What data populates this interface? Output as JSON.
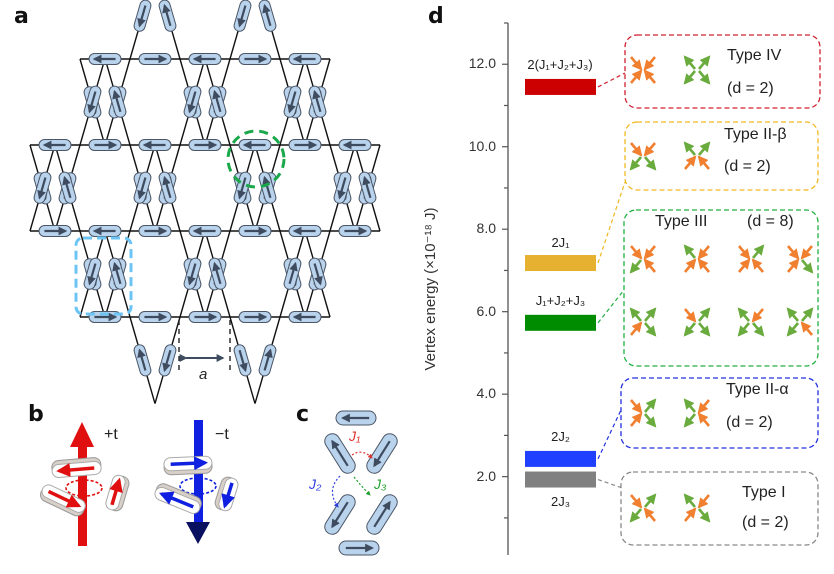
{
  "panels": {
    "a": "a",
    "b": "b",
    "c": "c",
    "d": "d"
  },
  "panel_a": {
    "lattice_label": "a",
    "magnet_color": "#b9d3ec",
    "arrow_color": "#3f4c60",
    "highlight_vertex_color": "#1aa84a",
    "highlight_unit_color": "#6cc4f5",
    "spins": [
      [
        -1,
        1,
        -1
      ],
      [
        1,
        -1,
        1
      ],
      [
        -1,
        1,
        -1
      ],
      [
        1,
        -1,
        1
      ],
      [
        -1,
        1,
        -1
      ],
      [
        -1,
        1,
        -1
      ],
      [
        1,
        -1,
        1
      ],
      [
        -1,
        1,
        -1
      ],
      [
        1,
        -1,
        1
      ],
      [
        -1,
        1,
        -1
      ],
      [
        1,
        -1,
        1
      ],
      [
        -1,
        1,
        -1
      ],
      [
        1,
        -1,
        1
      ],
      [
        -1,
        1,
        -1
      ],
      [
        1,
        -1,
        1
      ],
      [
        -1,
        1,
        -1
      ],
      [
        1,
        -1,
        1
      ],
      [
        -1,
        1,
        -1
      ],
      [
        1,
        -1,
        1
      ],
      [
        1,
        -1,
        1
      ],
      [
        1,
        -1,
        1
      ],
      [
        1,
        -1,
        1
      ],
      [
        1,
        1,
        -1
      ],
      [
        -1,
        1,
        -1
      ]
    ]
  },
  "panel_b": {
    "plus_label": "+t",
    "minus_label": "−t",
    "plus_color": "#e01010",
    "minus_color": "#1020e0"
  },
  "panel_c": {
    "j1": "J₁",
    "j2": "J₂",
    "j3": "J₃",
    "j1_color": "#e03030",
    "j2_color": "#3040e0",
    "j3_color": "#20a030"
  },
  "chart_data": {
    "type": "energy-level",
    "ylabel": "Vertex energy (×10⁻¹⁸ J)",
    "ylim": [
      0.1,
      13.0
    ],
    "yticks": [
      "2.0",
      "4.0",
      "6.0",
      "8.0",
      "10.0",
      "12.0"
    ],
    "in_color": "#f07f30",
    "out_color": "#6aab3e",
    "levels": [
      {
        "label": "2(J₁+J₂+J₃)",
        "energy": 11.45,
        "color": "#cc0000",
        "type": "Type IV",
        "degeneracy": "(d = 2)",
        "box_color": "#d02030",
        "vertices": [
          [
            1,
            1,
            1,
            1
          ],
          [
            0,
            0,
            0,
            0
          ]
        ]
      },
      {
        "label": "2J₁",
        "energy": 7.18,
        "color": "#e6b030",
        "type": "Type II-β",
        "degeneracy": "(d = 2)",
        "box_color": "#f0b820",
        "vertices": [
          [
            1,
            1,
            0,
            0
          ],
          [
            0,
            0,
            1,
            1
          ]
        ]
      },
      {
        "label": "J₁+J₂+J₃",
        "energy": 5.73,
        "color": "#008c00",
        "type": "Type III",
        "degeneracy": "(d = 8)",
        "box_color": "#20b040",
        "vertices": [
          [
            1,
            1,
            0,
            1
          ],
          [
            0,
            1,
            1,
            1
          ],
          [
            1,
            0,
            1,
            1
          ],
          [
            1,
            1,
            1,
            0
          ],
          [
            0,
            0,
            1,
            0
          ],
          [
            1,
            0,
            0,
            0
          ],
          [
            0,
            1,
            0,
            0
          ],
          [
            0,
            0,
            0,
            1
          ]
        ]
      },
      {
        "label": "2J₂",
        "energy": 2.43,
        "color": "#2040ff",
        "type": "Type II-α",
        "degeneracy": "(d = 2)",
        "box_color": "#2030e0",
        "vertices": [
          [
            1,
            0,
            1,
            0
          ],
          [
            0,
            1,
            0,
            1
          ]
        ]
      },
      {
        "label": "2J₃",
        "energy": 1.93,
        "color": "#808080",
        "type": "Type I",
        "degeneracy": "(d = 2)",
        "box_color": "#888888",
        "vertices": [
          [
            1,
            0,
            0,
            1
          ],
          [
            0,
            1,
            1,
            0
          ]
        ]
      }
    ]
  }
}
